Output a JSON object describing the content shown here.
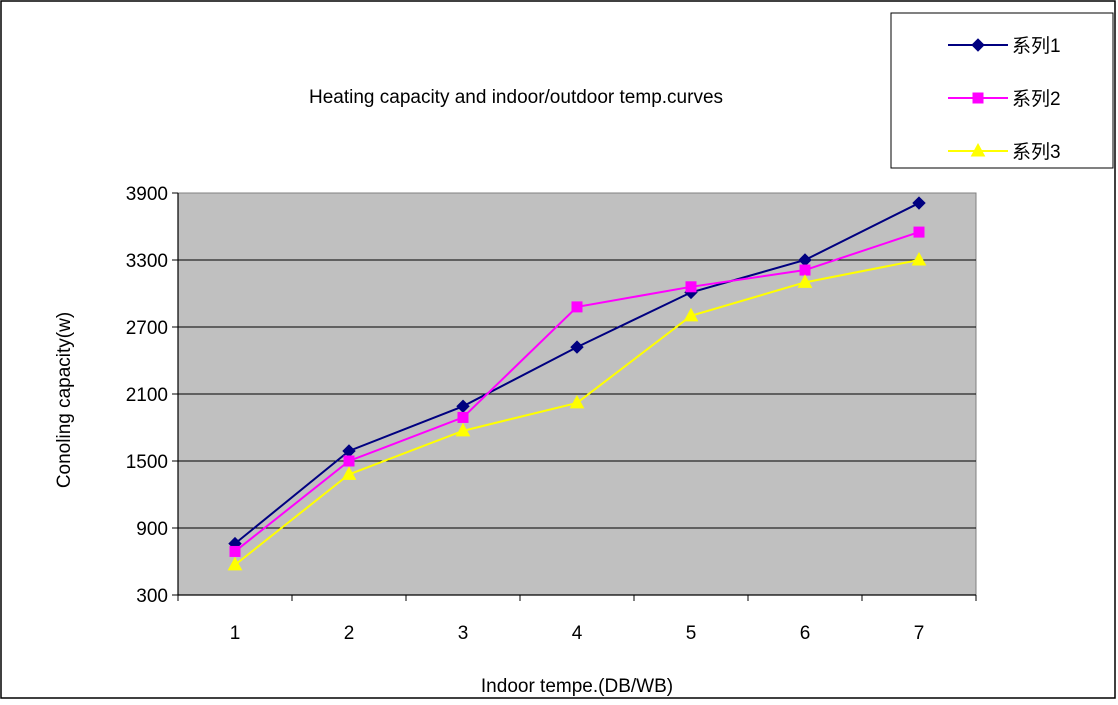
{
  "chart_data": {
    "type": "line",
    "title": "Heating capacity and indoor/outdoor temp.curves",
    "xlabel": "Indoor tempe.(DB/WB)",
    "ylabel": "Conoling capacity(w)",
    "categories": [
      "1",
      "2",
      "3",
      "4",
      "5",
      "6",
      "7"
    ],
    "y_ticks": [
      "300",
      "900",
      "1500",
      "2100",
      "2700",
      "3300",
      "3900"
    ],
    "ylim": [
      300,
      3900
    ],
    "grid": true,
    "legend_position": "top-right",
    "plot_background": "#C0C0C0",
    "series": [
      {
        "name": "系列1",
        "values": [
          760,
          1590,
          1990,
          2520,
          3010,
          3300,
          3810
        ],
        "color": "#000080",
        "marker": "diamond"
      },
      {
        "name": "系列2",
        "values": [
          690,
          1500,
          1890,
          2880,
          3060,
          3210,
          3550
        ],
        "color": "#FF00FF",
        "marker": "square"
      },
      {
        "name": "系列3",
        "values": [
          570,
          1380,
          1770,
          2020,
          2800,
          3100,
          3300
        ],
        "color": "#FFFF00",
        "marker": "triangle"
      }
    ]
  }
}
